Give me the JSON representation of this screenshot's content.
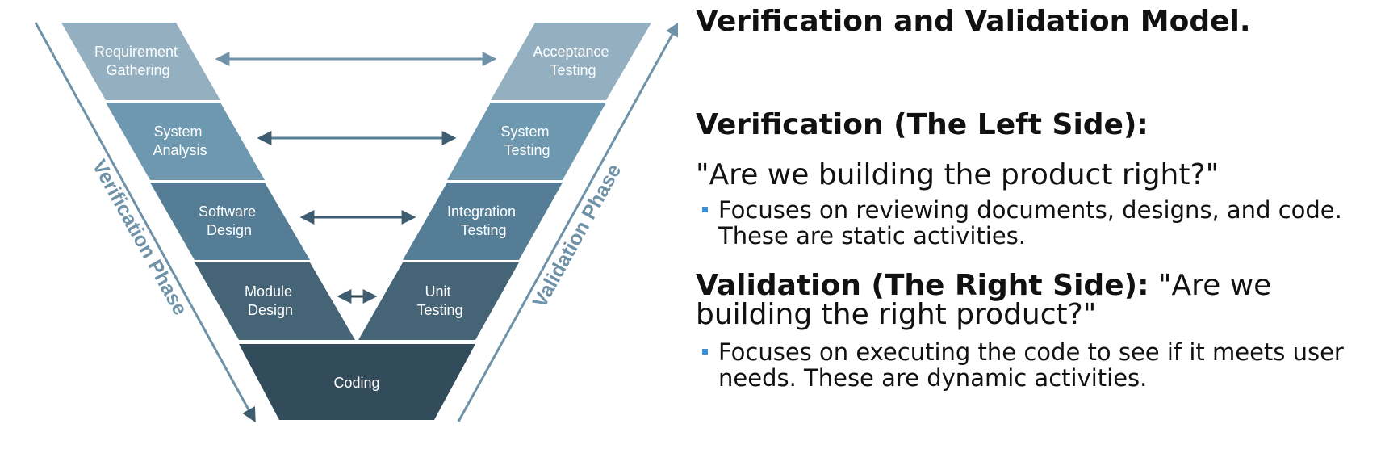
{
  "diagram": {
    "stages_left": [
      "Requirement Gathering",
      "System Analysis",
      "Software Design",
      "Module Design"
    ],
    "stages_right": [
      "Acceptance Testing",
      "System Testing",
      "Integration Testing",
      "Unit Testing"
    ],
    "stage_bottom": "Coding",
    "left_phase_label": "Verification Phase",
    "right_phase_label": "Validation Phase",
    "colors": [
      "#93afc0",
      "#6d98b0",
      "#557d95",
      "#456476",
      "#334c5c"
    ],
    "phase_color": "#6f92a8"
  },
  "slide": {
    "main_heading": "Verification and Validation Model.",
    "verification_heading": "Verification (The Left Side):",
    "verification_question": "\"Are we building the product right?\"",
    "verification_bullet": "Focuses on reviewing documents, designs, and code. These are static activities.",
    "validation_heading": "Validation (The Right Side):",
    "validation_question": "\"Are we building the right product?\"",
    "validation_bullet": "Focuses on executing the code to see if it meets user needs. These are dynamic activities.",
    "bullet_color": "#3b8fd4"
  }
}
